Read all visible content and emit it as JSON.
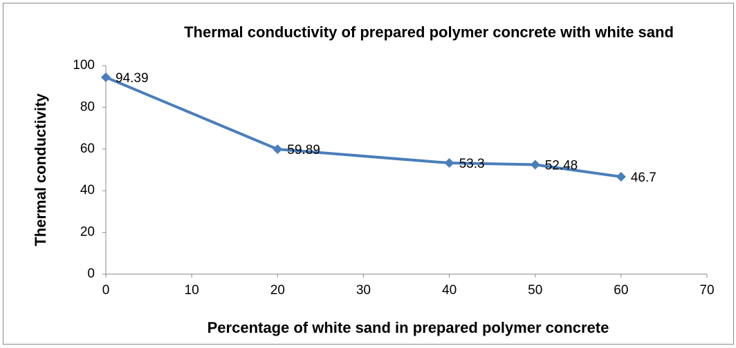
{
  "chart_data": {
    "type": "line",
    "title": "Thermal conductivity of prepared polymer concrete with white sand",
    "x_label": "Percentage of white sand in prepared polymer concrete",
    "y_label": "Thermal conductivity",
    "x": [
      0,
      20,
      40,
      50,
      60
    ],
    "values": [
      94.39,
      59.89,
      53.3,
      52.48,
      46.7
    ],
    "color": "#4a7ebb",
    "xlim": [
      0,
      70
    ],
    "xticks": [
      0,
      10,
      20,
      30,
      40,
      50,
      60,
      70
    ],
    "ylim": [
      0,
      100
    ],
    "yticks": [
      0,
      20,
      40,
      60,
      80,
      100
    ],
    "grid": false
  }
}
